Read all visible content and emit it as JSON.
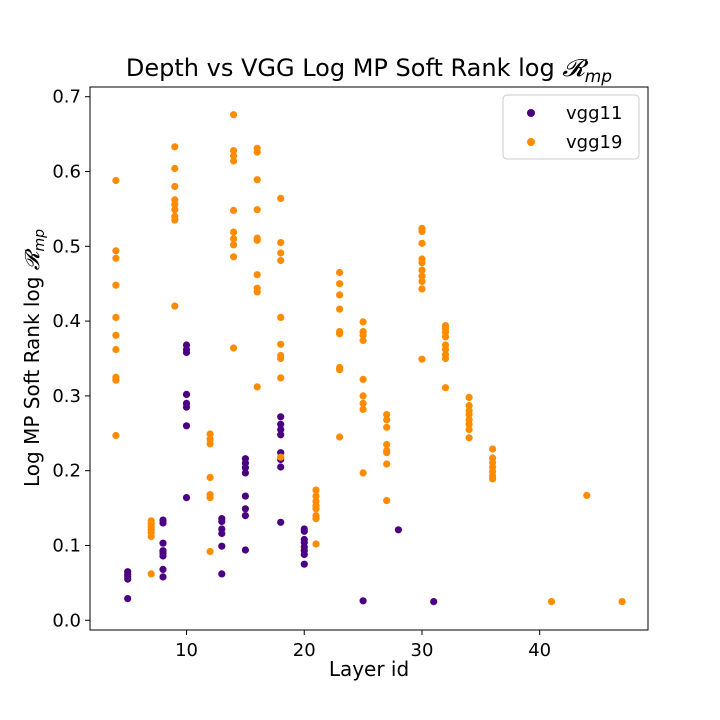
{
  "chart_data": {
    "type": "scatter",
    "title": "Depth vs VGG Log MP Soft Rank log ",
    "title_math": "𝓡",
    "title_math_sub": "mp",
    "xlabel": "Layer id",
    "ylabel": "Log MP Soft Rank log ",
    "ylabel_math": "𝓡",
    "ylabel_math_sub": "mp",
    "xlim": [
      1.8,
      49.2
    ],
    "ylim": [
      -0.013,
      0.713
    ],
    "xticks": [
      10,
      20,
      30,
      40
    ],
    "yticks": [
      0.0,
      0.1,
      0.2,
      0.3,
      0.4,
      0.5,
      0.6,
      0.7
    ],
    "ytick_labels": [
      "0.0",
      "0.1",
      "0.2",
      "0.3",
      "0.4",
      "0.5",
      "0.6",
      "0.7"
    ],
    "legend_position": "top-right",
    "grid": false,
    "series": [
      {
        "name": "vgg11",
        "color": "#4b0082",
        "points": [
          [
            5,
            0.029
          ],
          [
            5,
            0.055
          ],
          [
            5,
            0.058
          ],
          [
            5,
            0.061
          ],
          [
            5,
            0.065
          ],
          [
            8,
            0.058
          ],
          [
            8,
            0.068
          ],
          [
            8,
            0.086
          ],
          [
            8,
            0.09
          ],
          [
            8,
            0.093
          ],
          [
            8,
            0.103
          ],
          [
            8,
            0.13
          ],
          [
            8,
            0.134
          ],
          [
            10,
            0.164
          ],
          [
            10,
            0.26
          ],
          [
            10,
            0.285
          ],
          [
            10,
            0.29
          ],
          [
            10,
            0.302
          ],
          [
            10,
            0.358
          ],
          [
            10,
            0.362
          ],
          [
            10,
            0.368
          ],
          [
            13,
            0.062
          ],
          [
            13,
            0.099
          ],
          [
            13,
            0.116
          ],
          [
            13,
            0.122
          ],
          [
            13,
            0.132
          ],
          [
            13,
            0.136
          ],
          [
            15,
            0.094
          ],
          [
            15,
            0.14
          ],
          [
            15,
            0.149
          ],
          [
            15,
            0.166
          ],
          [
            15,
            0.197
          ],
          [
            15,
            0.204
          ],
          [
            15,
            0.21
          ],
          [
            15,
            0.216
          ],
          [
            18,
            0.131
          ],
          [
            18,
            0.205
          ],
          [
            18,
            0.215
          ],
          [
            18,
            0.224
          ],
          [
            18,
            0.248
          ],
          [
            18,
            0.255
          ],
          [
            18,
            0.262
          ],
          [
            18,
            0.272
          ],
          [
            20,
            0.075
          ],
          [
            20,
            0.088
          ],
          [
            20,
            0.093
          ],
          [
            20,
            0.098
          ],
          [
            20,
            0.104
          ],
          [
            20,
            0.108
          ],
          [
            20,
            0.119
          ],
          [
            20,
            0.122
          ],
          [
            25,
            0.026
          ],
          [
            28,
            0.121
          ],
          [
            31,
            0.025
          ]
        ]
      },
      {
        "name": "vgg19",
        "color": "#ff8c00",
        "points": [
          [
            4,
            0.247
          ],
          [
            4,
            0.321
          ],
          [
            4,
            0.325
          ],
          [
            4,
            0.362
          ],
          [
            4,
            0.381
          ],
          [
            4,
            0.405
          ],
          [
            4,
            0.448
          ],
          [
            4,
            0.484
          ],
          [
            4,
            0.494
          ],
          [
            4,
            0.588
          ],
          [
            7,
            0.062
          ],
          [
            7,
            0.112
          ],
          [
            7,
            0.117
          ],
          [
            7,
            0.121
          ],
          [
            7,
            0.125
          ],
          [
            7,
            0.129
          ],
          [
            7,
            0.133
          ],
          [
            9,
            0.42
          ],
          [
            9,
            0.535
          ],
          [
            9,
            0.54
          ],
          [
            9,
            0.549
          ],
          [
            9,
            0.556
          ],
          [
            9,
            0.562
          ],
          [
            9,
            0.58
          ],
          [
            9,
            0.604
          ],
          [
            9,
            0.633
          ],
          [
            12,
            0.092
          ],
          [
            12,
            0.164
          ],
          [
            12,
            0.168
          ],
          [
            12,
            0.191
          ],
          [
            12,
            0.236
          ],
          [
            12,
            0.242
          ],
          [
            12,
            0.249
          ],
          [
            14,
            0.364
          ],
          [
            14,
            0.486
          ],
          [
            14,
            0.502
          ],
          [
            14,
            0.51
          ],
          [
            14,
            0.519
          ],
          [
            14,
            0.548
          ],
          [
            14,
            0.614
          ],
          [
            14,
            0.621
          ],
          [
            14,
            0.628
          ],
          [
            14,
            0.676
          ],
          [
            16,
            0.312
          ],
          [
            16,
            0.439
          ],
          [
            16,
            0.444
          ],
          [
            16,
            0.462
          ],
          [
            16,
            0.508
          ],
          [
            16,
            0.511
          ],
          [
            16,
            0.549
          ],
          [
            16,
            0.589
          ],
          [
            16,
            0.626
          ],
          [
            16,
            0.631
          ],
          [
            18,
            0.218
          ],
          [
            18,
            0.324
          ],
          [
            18,
            0.35
          ],
          [
            18,
            0.354
          ],
          [
            18,
            0.369
          ],
          [
            18,
            0.405
          ],
          [
            18,
            0.481
          ],
          [
            18,
            0.491
          ],
          [
            18,
            0.505
          ],
          [
            18,
            0.564
          ],
          [
            21,
            0.102
          ],
          [
            21,
            0.136
          ],
          [
            21,
            0.14
          ],
          [
            21,
            0.149
          ],
          [
            21,
            0.153
          ],
          [
            21,
            0.159
          ],
          [
            21,
            0.166
          ],
          [
            21,
            0.174
          ],
          [
            23,
            0.245
          ],
          [
            23,
            0.335
          ],
          [
            23,
            0.338
          ],
          [
            23,
            0.383
          ],
          [
            23,
            0.386
          ],
          [
            23,
            0.416
          ],
          [
            23,
            0.435
          ],
          [
            23,
            0.45
          ],
          [
            23,
            0.465
          ],
          [
            25,
            0.197
          ],
          [
            25,
            0.282
          ],
          [
            25,
            0.29
          ],
          [
            25,
            0.3
          ],
          [
            25,
            0.322
          ],
          [
            25,
            0.374
          ],
          [
            25,
            0.381
          ],
          [
            25,
            0.386
          ],
          [
            25,
            0.399
          ],
          [
            27,
            0.16
          ],
          [
            27,
            0.209
          ],
          [
            27,
            0.224
          ],
          [
            27,
            0.227
          ],
          [
            27,
            0.235
          ],
          [
            27,
            0.258
          ],
          [
            27,
            0.268
          ],
          [
            27,
            0.275
          ],
          [
            30,
            0.349
          ],
          [
            30,
            0.443
          ],
          [
            30,
            0.453
          ],
          [
            30,
            0.46
          ],
          [
            30,
            0.468
          ],
          [
            30,
            0.478
          ],
          [
            30,
            0.483
          ],
          [
            30,
            0.504
          ],
          [
            30,
            0.52
          ],
          [
            30,
            0.524
          ],
          [
            32,
            0.311
          ],
          [
            32,
            0.35
          ],
          [
            32,
            0.355
          ],
          [
            32,
            0.362
          ],
          [
            32,
            0.368
          ],
          [
            32,
            0.379
          ],
          [
            32,
            0.385
          ],
          [
            32,
            0.39
          ],
          [
            32,
            0.394
          ],
          [
            34,
            0.244
          ],
          [
            34,
            0.255
          ],
          [
            34,
            0.262
          ],
          [
            34,
            0.268
          ],
          [
            34,
            0.275
          ],
          [
            34,
            0.28
          ],
          [
            34,
            0.287
          ],
          [
            34,
            0.298
          ],
          [
            36,
            0.189
          ],
          [
            36,
            0.193
          ],
          [
            36,
            0.199
          ],
          [
            36,
            0.205
          ],
          [
            36,
            0.211
          ],
          [
            36,
            0.217
          ],
          [
            36,
            0.229
          ],
          [
            41,
            0.025
          ],
          [
            44,
            0.167
          ],
          [
            47,
            0.025
          ]
        ]
      }
    ]
  }
}
